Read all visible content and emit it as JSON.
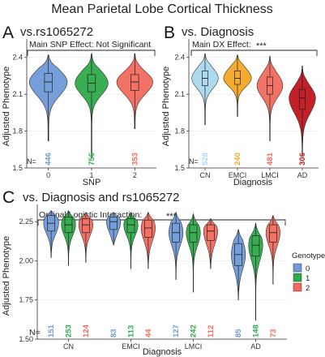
{
  "figure": {
    "title": "Mean Parietal Lobe Cortical Thickness",
    "panel_a_letter": "A",
    "panel_b_letter": "B",
    "panel_c_letter": "C"
  },
  "chart_data": [
    {
      "id": "A",
      "type": "violin",
      "title": "vs.rs1065272",
      "xlabel": "SNP",
      "ylabel": "Adjusted Phenotype",
      "annotation": "Main SNP Effect: Not Significant",
      "n_label": "N=",
      "categories": [
        "0",
        "1",
        "2"
      ],
      "counts": [
        446,
        756,
        353
      ],
      "colors": [
        "#6f9ad8",
        "#2eaa4a",
        "#f26a5e"
      ],
      "ylim": [
        1.5,
        2.55
      ],
      "yticks": [
        1.5,
        1.8,
        2.1,
        2.4
      ],
      "violins": [
        {
          "min": 1.72,
          "q1": 2.12,
          "median": 2.2,
          "q3": 2.27,
          "max": 2.42,
          "width": 0.86
        },
        {
          "min": 1.58,
          "q1": 2.12,
          "median": 2.19,
          "q3": 2.26,
          "max": 2.43,
          "width": 0.75
        },
        {
          "min": 1.82,
          "q1": 2.13,
          "median": 2.2,
          "q3": 2.26,
          "max": 2.43,
          "width": 0.82
        }
      ]
    },
    {
      "id": "B",
      "type": "violin",
      "title": "vs. Diagnosis",
      "xlabel": "Diagnosis",
      "ylabel": "Adjusted Phenotype",
      "annotation": "Main DX Effect:",
      "significance": "***",
      "n_label": "N=",
      "categories": [
        "CN",
        "EMCI",
        "LMCI",
        "AD"
      ],
      "counts": [
        528,
        240,
        481,
        306
      ],
      "colors": [
        "#aad8ee",
        "#f4a623",
        "#f26a5e",
        "#c0141c"
      ],
      "ylim": [
        1.5,
        2.55
      ],
      "yticks": [
        1.5,
        1.8,
        2.1,
        2.4
      ],
      "violins": [
        {
          "min": 1.85,
          "q1": 2.17,
          "median": 2.23,
          "q3": 2.29,
          "max": 2.43,
          "width": 0.8
        },
        {
          "min": 1.92,
          "q1": 2.18,
          "median": 2.23,
          "q3": 2.29,
          "max": 2.42,
          "width": 0.84
        },
        {
          "min": 1.72,
          "q1": 2.1,
          "median": 2.17,
          "q3": 2.24,
          "max": 2.41,
          "width": 0.78
        },
        {
          "min": 1.6,
          "q1": 1.98,
          "median": 2.07,
          "q3": 2.14,
          "max": 2.33,
          "width": 0.8
        }
      ]
    },
    {
      "id": "C",
      "type": "violin",
      "title": "vs. Diagnosis and rs1065272",
      "xlabel": "Diagnosis",
      "ylabel": "Adjusted Phenotype",
      "annotation": "Ordinal Logistic Interaction:",
      "significance": "***",
      "n_label": "N=",
      "legend_title": "Genotype",
      "legend_position": "right",
      "genotypes": [
        "0",
        "1",
        "2"
      ],
      "colors": [
        "#6f9ad8",
        "#2eaa4a",
        "#f26a5e"
      ],
      "categories": [
        "CN",
        "EMCI",
        "LMCI",
        "AD"
      ],
      "counts": [
        [
          151,
          253,
          124
        ],
        [
          83,
          113,
          44
        ],
        [
          127,
          242,
          112
        ],
        [
          85,
          148,
          73
        ]
      ],
      "ylim": [
        1.5,
        2.36
      ],
      "yticks": [
        1.5,
        1.75,
        2.0,
        2.25
      ],
      "violins": [
        [
          {
            "min": 2.02,
            "q1": 2.19,
            "median": 2.24,
            "q3": 2.29,
            "max": 2.32,
            "width": 0.85
          },
          {
            "min": 1.97,
            "q1": 2.18,
            "median": 2.23,
            "q3": 2.28,
            "max": 2.32,
            "width": 0.8
          },
          {
            "min": 1.99,
            "q1": 2.18,
            "median": 2.23,
            "q3": 2.27,
            "max": 2.31,
            "width": 0.8
          }
        ],
        [
          {
            "min": 2.1,
            "q1": 2.2,
            "median": 2.25,
            "q3": 2.28,
            "max": 2.31,
            "width": 0.8
          },
          {
            "min": 1.95,
            "q1": 2.18,
            "median": 2.23,
            "q3": 2.27,
            "max": 2.31,
            "width": 0.8
          },
          {
            "min": 1.95,
            "q1": 2.15,
            "median": 2.21,
            "q3": 2.26,
            "max": 2.31,
            "width": 0.8
          }
        ],
        [
          {
            "min": 1.88,
            "q1": 2.12,
            "median": 2.18,
            "q3": 2.24,
            "max": 2.31,
            "width": 0.8
          },
          {
            "min": 1.8,
            "q1": 2.12,
            "median": 2.18,
            "q3": 2.23,
            "max": 2.3,
            "width": 0.8
          },
          {
            "min": 1.95,
            "q1": 2.13,
            "median": 2.19,
            "q3": 2.23,
            "max": 2.27,
            "width": 0.8
          }
        ],
        [
          {
            "min": 1.75,
            "q1": 1.97,
            "median": 2.04,
            "q3": 2.11,
            "max": 2.2,
            "width": 0.8
          },
          {
            "min": 1.62,
            "q1": 2.03,
            "median": 2.1,
            "q3": 2.16,
            "max": 2.24,
            "width": 0.8
          },
          {
            "min": 1.85,
            "q1": 2.12,
            "median": 2.18,
            "q3": 2.23,
            "max": 2.29,
            "width": 0.8
          }
        ]
      ]
    }
  ]
}
